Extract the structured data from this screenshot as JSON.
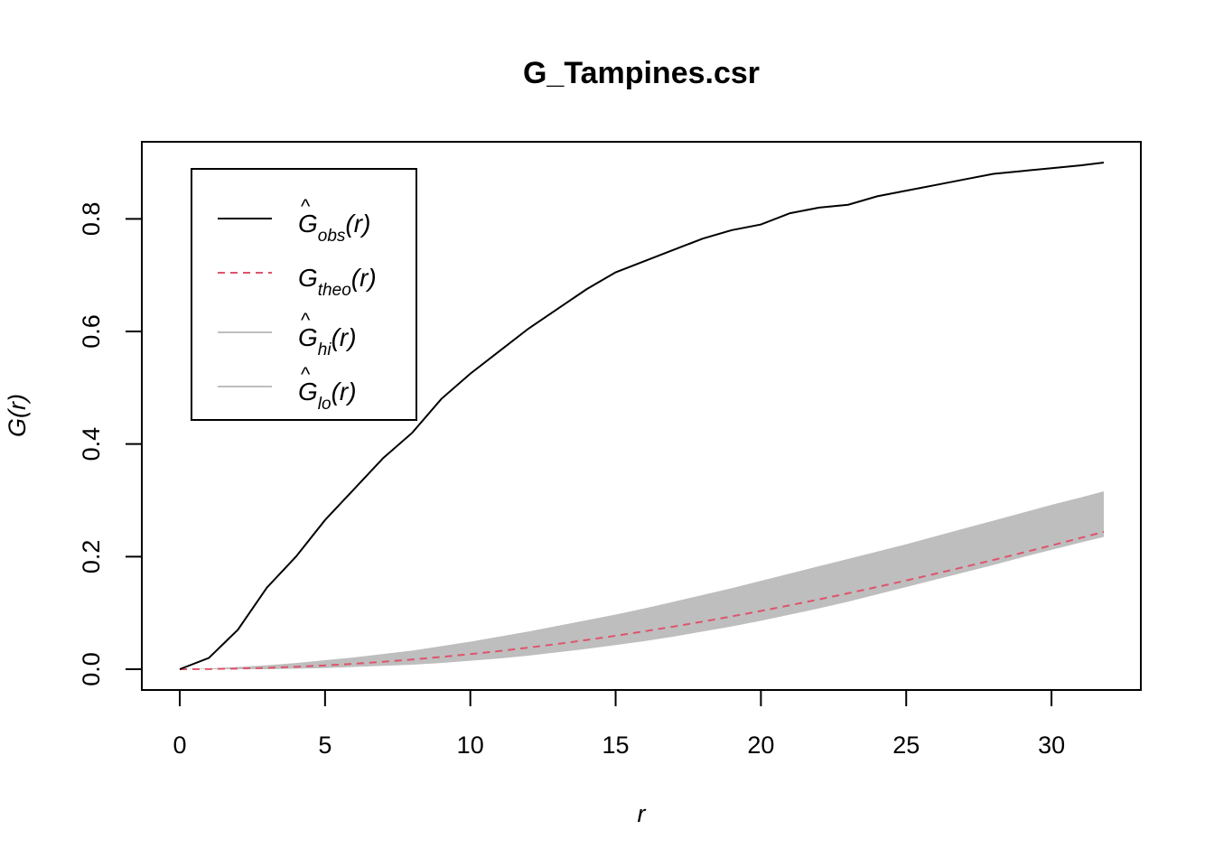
{
  "chart_data": {
    "type": "line",
    "title": "G_Tampines.csr",
    "xlabel": "r",
    "ylabel": "G(r)",
    "xlim": [
      0,
      31.8
    ],
    "ylim": [
      0,
      0.9
    ],
    "xticks": [
      "0",
      "5",
      "10",
      "15",
      "20",
      "25",
      "30"
    ],
    "yticks": [
      "0.0",
      "0.2",
      "0.4",
      "0.6",
      "0.8"
    ],
    "legend_position": "top-left",
    "x": [
      0,
      1,
      2,
      3,
      4,
      5,
      6,
      7,
      8,
      9,
      10,
      11,
      12,
      13,
      14,
      15,
      16,
      17,
      18,
      19,
      20,
      21,
      22,
      23,
      24,
      25,
      26,
      27,
      28,
      29,
      30,
      31,
      31.8
    ],
    "series": [
      {
        "name": "obs",
        "legend_main": "G",
        "legend_sub": "obs",
        "legend_hat": true,
        "color": "#000000",
        "style": "solid",
        "values": [
          0,
          0.02,
          0.07,
          0.145,
          0.2,
          0.265,
          0.32,
          0.375,
          0.42,
          0.48,
          0.525,
          0.565,
          0.605,
          0.64,
          0.675,
          0.705,
          0.725,
          0.745,
          0.765,
          0.78,
          0.79,
          0.81,
          0.82,
          0.825,
          0.84,
          0.85,
          0.86,
          0.87,
          0.88,
          0.885,
          0.89,
          0.895,
          0.9
        ]
      },
      {
        "name": "theo",
        "legend_main": "G",
        "legend_sub": "theo",
        "legend_hat": false,
        "color": "#DF536B",
        "style": "dashed",
        "values": [
          0,
          0.0003,
          0.0011,
          0.0024,
          0.0043,
          0.0067,
          0.0097,
          0.0132,
          0.0172,
          0.0218,
          0.0268,
          0.0323,
          0.0384,
          0.0449,
          0.0519,
          0.0594,
          0.0674,
          0.0758,
          0.0846,
          0.0939,
          0.1035,
          0.1136,
          0.1241,
          0.1349,
          0.1461,
          0.1576,
          0.1695,
          0.1817,
          0.1941,
          0.2069,
          0.2199,
          0.2332,
          0.244
        ]
      },
      {
        "name": "hi",
        "legend_main": "G",
        "legend_sub": "hi",
        "legend_hat": true,
        "color": "#BEBEBE",
        "style": "solid",
        "values": [
          0,
          0.0015,
          0.004,
          0.007,
          0.011,
          0.016,
          0.021,
          0.027,
          0.033,
          0.041,
          0.049,
          0.058,
          0.067,
          0.077,
          0.087,
          0.097,
          0.108,
          0.12,
          0.132,
          0.144,
          0.157,
          0.17,
          0.183,
          0.196,
          0.209,
          0.222,
          0.236,
          0.25,
          0.264,
          0.278,
          0.292,
          0.305,
          0.316
        ]
      },
      {
        "name": "lo",
        "legend_main": "G",
        "legend_sub": "lo",
        "legend_hat": true,
        "color": "#BEBEBE",
        "style": "solid",
        "values": [
          0,
          0,
          0,
          0,
          0.001,
          0.002,
          0.004,
          0.006,
          0.008,
          0.011,
          0.015,
          0.019,
          0.024,
          0.03,
          0.036,
          0.043,
          0.05,
          0.058,
          0.067,
          0.076,
          0.086,
          0.097,
          0.108,
          0.12,
          0.133,
          0.146,
          0.159,
          0.172,
          0.185,
          0.199,
          0.212,
          0.225,
          0.235
        ]
      }
    ],
    "band": {
      "upper": "hi",
      "lower": "lo",
      "color": "#BEBEBE"
    }
  }
}
